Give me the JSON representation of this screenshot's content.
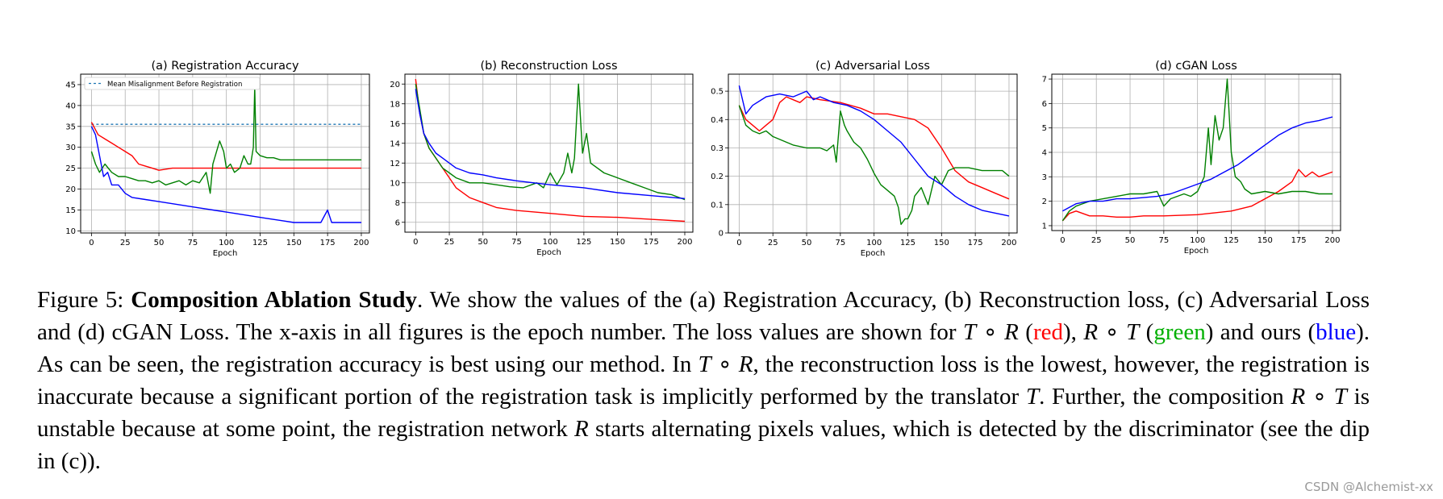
{
  "chart_data": [
    {
      "type": "line",
      "title": "(a) Registration Accuracy",
      "xlabel": "Epoch",
      "ylabel": "",
      "xlim": [
        -8,
        206
      ],
      "ylim": [
        9.5,
        47.5
      ],
      "xticks": [
        0,
        25,
        50,
        75,
        100,
        125,
        150,
        175,
        200
      ],
      "yticks": [
        10,
        15,
        20,
        25,
        30,
        35,
        40,
        45
      ],
      "grid": true,
      "legend": {
        "placement": "top-left",
        "entries": [
          "Mean Misalignment Before Registration"
        ]
      },
      "reference_line": {
        "name": "Mean Misalignment Before Registration",
        "y": 35.5,
        "color": "#1f77b4",
        "style": "dashed"
      },
      "series": [
        {
          "color": "#ff0000",
          "x": [
            0,
            5,
            10,
            15,
            20,
            25,
            30,
            35,
            40,
            45,
            50,
            60,
            70,
            80,
            90,
            100,
            120,
            140,
            160,
            180,
            200
          ],
          "values": [
            36,
            33,
            32,
            31,
            30,
            29,
            28,
            26,
            25.5,
            25,
            24.5,
            25,
            25,
            25,
            25,
            25,
            25,
            25,
            25,
            25,
            25
          ]
        },
        {
          "color": "#008000",
          "x": [
            0,
            3,
            6,
            10,
            15,
            20,
            25,
            30,
            35,
            40,
            45,
            50,
            55,
            60,
            65,
            70,
            75,
            80,
            85,
            88,
            90,
            95,
            98,
            100,
            103,
            106,
            110,
            113,
            116,
            118,
            120,
            121,
            122,
            125,
            130,
            135,
            140,
            150,
            160,
            170,
            180,
            190,
            200
          ],
          "values": [
            29,
            26,
            24,
            26,
            24,
            23,
            23,
            22.5,
            22,
            22,
            21.5,
            22,
            21,
            21.5,
            22,
            21,
            22,
            21.5,
            24,
            19,
            26,
            31.5,
            29,
            25,
            26,
            24,
            25,
            28,
            26,
            26,
            30,
            44.5,
            29,
            28,
            27.5,
            27.5,
            27,
            27,
            27,
            27,
            27,
            27,
            27
          ]
        },
        {
          "color": "#0000ff",
          "x": [
            0,
            3,
            6,
            9,
            12,
            15,
            20,
            25,
            30,
            40,
            50,
            60,
            70,
            80,
            90,
            100,
            110,
            120,
            130,
            140,
            150,
            160,
            170,
            175,
            178,
            180,
            190,
            200
          ],
          "values": [
            35,
            33,
            28,
            23,
            24,
            21,
            21,
            19,
            18,
            17.5,
            17,
            16.5,
            16,
            15.5,
            15,
            14.5,
            14,
            13.5,
            13,
            12.5,
            12,
            12,
            12,
            15,
            12,
            12,
            12,
            12
          ]
        }
      ]
    },
    {
      "type": "line",
      "title": "(b) Reconstruction Loss",
      "xlabel": "Epoch",
      "ylabel": "",
      "xlim": [
        -8,
        206
      ],
      "ylim": [
        5,
        21
      ],
      "xticks": [
        0,
        25,
        50,
        75,
        100,
        125,
        150,
        175,
        200
      ],
      "yticks": [
        6,
        8,
        10,
        12,
        14,
        16,
        18,
        20
      ],
      "grid": true,
      "series": [
        {
          "color": "#ff0000",
          "x": [
            0,
            3,
            6,
            10,
            15,
            20,
            25,
            30,
            40,
            50,
            60,
            75,
            100,
            125,
            150,
            175,
            200
          ],
          "values": [
            20.5,
            17,
            15,
            13.5,
            12.5,
            11.5,
            10.5,
            9.5,
            8.5,
            8,
            7.5,
            7.2,
            6.9,
            6.6,
            6.5,
            6.3,
            6.1
          ]
        },
        {
          "color": "#008000",
          "x": [
            0,
            3,
            6,
            10,
            15,
            20,
            25,
            30,
            40,
            50,
            60,
            70,
            80,
            90,
            95,
            100,
            105,
            110,
            113,
            116,
            118,
            121,
            124,
            127,
            130,
            140,
            150,
            160,
            170,
            180,
            190,
            200
          ],
          "values": [
            20,
            17.5,
            15,
            13.5,
            12.5,
            11.5,
            11,
            10.5,
            10,
            10,
            9.8,
            9.6,
            9.5,
            10,
            9.5,
            11,
            9.8,
            11,
            13,
            11,
            12.5,
            20,
            13,
            15,
            12,
            11,
            10.5,
            10,
            9.5,
            9,
            8.8,
            8.3
          ]
        },
        {
          "color": "#0000ff",
          "x": [
            0,
            3,
            6,
            10,
            15,
            20,
            25,
            30,
            40,
            50,
            60,
            75,
            100,
            125,
            150,
            175,
            200
          ],
          "values": [
            19.5,
            17,
            15,
            14,
            13,
            12.5,
            12,
            11.5,
            11,
            10.8,
            10.5,
            10.2,
            9.8,
            9.5,
            9,
            8.7,
            8.4
          ]
        }
      ]
    },
    {
      "type": "line",
      "title": "(c) Adversarial Loss",
      "xlabel": "Epoch",
      "ylabel": "",
      "xlim": [
        -8,
        206
      ],
      "ylim": [
        0,
        0.56
      ],
      "xticks": [
        0,
        25,
        50,
        75,
        100,
        125,
        150,
        175,
        200
      ],
      "yticks": [
        0.0,
        0.1,
        0.2,
        0.3,
        0.4,
        0.5
      ],
      "grid": true,
      "series": [
        {
          "color": "#ff0000",
          "x": [
            0,
            5,
            10,
            15,
            20,
            25,
            30,
            35,
            40,
            45,
            50,
            60,
            75,
            90,
            100,
            110,
            120,
            130,
            140,
            150,
            160,
            170,
            180,
            190,
            200
          ],
          "values": [
            0.45,
            0.4,
            0.38,
            0.36,
            0.38,
            0.4,
            0.46,
            0.48,
            0.47,
            0.46,
            0.48,
            0.47,
            0.46,
            0.44,
            0.42,
            0.42,
            0.41,
            0.4,
            0.37,
            0.3,
            0.22,
            0.18,
            0.16,
            0.14,
            0.12
          ]
        },
        {
          "color": "#008000",
          "x": [
            0,
            5,
            10,
            15,
            20,
            25,
            30,
            40,
            50,
            60,
            65,
            70,
            72,
            75,
            78,
            80,
            85,
            90,
            95,
            100,
            105,
            110,
            115,
            118,
            120,
            123,
            125,
            128,
            130,
            135,
            140,
            145,
            150,
            155,
            160,
            170,
            180,
            190,
            195,
            200
          ],
          "values": [
            0.45,
            0.38,
            0.36,
            0.35,
            0.36,
            0.34,
            0.33,
            0.31,
            0.3,
            0.3,
            0.29,
            0.31,
            0.25,
            0.43,
            0.38,
            0.36,
            0.32,
            0.3,
            0.26,
            0.21,
            0.17,
            0.15,
            0.13,
            0.09,
            0.03,
            0.05,
            0.05,
            0.08,
            0.13,
            0.16,
            0.1,
            0.2,
            0.17,
            0.22,
            0.23,
            0.23,
            0.22,
            0.22,
            0.22,
            0.2
          ]
        },
        {
          "color": "#0000ff",
          "x": [
            0,
            5,
            10,
            20,
            30,
            40,
            50,
            55,
            60,
            70,
            80,
            90,
            100,
            110,
            120,
            130,
            140,
            150,
            160,
            170,
            180,
            190,
            200
          ],
          "values": [
            0.52,
            0.42,
            0.45,
            0.48,
            0.49,
            0.48,
            0.5,
            0.47,
            0.48,
            0.46,
            0.45,
            0.43,
            0.4,
            0.36,
            0.32,
            0.26,
            0.2,
            0.17,
            0.13,
            0.1,
            0.08,
            0.07,
            0.06
          ]
        }
      ]
    },
    {
      "type": "line",
      "title": "(d) cGAN Loss",
      "xlabel": "Epoch",
      "ylabel": "",
      "xlim": [
        -8,
        206
      ],
      "ylim": [
        0.8,
        7.2
      ],
      "xticks": [
        0,
        25,
        50,
        75,
        100,
        125,
        150,
        175,
        200
      ],
      "yticks": [
        1,
        2,
        3,
        4,
        5,
        6,
        7
      ],
      "grid": true,
      "series": [
        {
          "color": "#ff0000",
          "x": [
            0,
            5,
            10,
            20,
            30,
            40,
            50,
            60,
            75,
            100,
            125,
            140,
            150,
            160,
            170,
            175,
            180,
            185,
            190,
            200
          ],
          "values": [
            1.2,
            1.5,
            1.6,
            1.4,
            1.4,
            1.35,
            1.35,
            1.4,
            1.4,
            1.45,
            1.6,
            1.8,
            2.1,
            2.4,
            2.8,
            3.3,
            3.0,
            3.2,
            3.0,
            3.2
          ]
        },
        {
          "color": "#008000",
          "x": [
            0,
            5,
            10,
            20,
            30,
            40,
            50,
            60,
            70,
            75,
            80,
            90,
            95,
            100,
            105,
            108,
            110,
            113,
            116,
            119,
            122,
            125,
            128,
            132,
            135,
            140,
            150,
            160,
            170,
            180,
            190,
            200
          ],
          "values": [
            1.2,
            1.6,
            1.8,
            2.0,
            2.1,
            2.2,
            2.3,
            2.3,
            2.4,
            1.8,
            2.1,
            2.3,
            2.2,
            2.4,
            3.0,
            5.0,
            3.5,
            5.5,
            4.5,
            5.0,
            7.0,
            4.0,
            3.0,
            2.8,
            2.5,
            2.3,
            2.4,
            2.3,
            2.4,
            2.4,
            2.3,
            2.3
          ]
        },
        {
          "color": "#0000ff",
          "x": [
            0,
            10,
            20,
            30,
            40,
            50,
            60,
            70,
            80,
            90,
            100,
            110,
            120,
            130,
            140,
            150,
            160,
            170,
            180,
            190,
            200
          ],
          "values": [
            1.6,
            1.9,
            2.0,
            2.0,
            2.1,
            2.1,
            2.15,
            2.2,
            2.3,
            2.5,
            2.7,
            2.9,
            3.2,
            3.5,
            3.9,
            4.3,
            4.7,
            5.0,
            5.2,
            5.3,
            5.45
          ]
        }
      ]
    }
  ],
  "caption": {
    "label": "Figure 5:",
    "bold_title": "Composition Ablation Study",
    "t1": ". We show the values of the (a) Registration Accuracy, (b) Reconstruction loss, (c) Adversarial Loss and (d) cGAN Loss. The x-axis in all figures is the epoch number. The loss values are shown for ",
    "m_T1": "T",
    "op1": " ∘ ",
    "m_R1": "R",
    "t2": " (",
    "red": "red",
    "t3": "), ",
    "m_R2": "R",
    "op2": " ∘ ",
    "m_T2": "T",
    "t4": " (",
    "green": "green",
    "t5": ") and ours (",
    "blue": "blue",
    "t6": "). As can be seen, the registration accuracy is best using our method. In ",
    "m_T3": "T",
    "op3": " ∘ ",
    "m_R3": "R",
    "t7": ", the reconstruction loss is the lowest, however, the registration is inaccurate because a significant portion of the registration task is implicitly performed by the translator ",
    "m_T4": "T",
    "t8": ". Further, the composition ",
    "m_R4": "R",
    "op4": " ∘ ",
    "m_T5": "T",
    "t9": " is unstable because at some point, the registration network ",
    "m_R5": "R",
    "t10": " starts alternating pixels values, which is detected by the discriminator (see the dip in (c))."
  },
  "watermark": "CSDN @Alchemist-xx"
}
